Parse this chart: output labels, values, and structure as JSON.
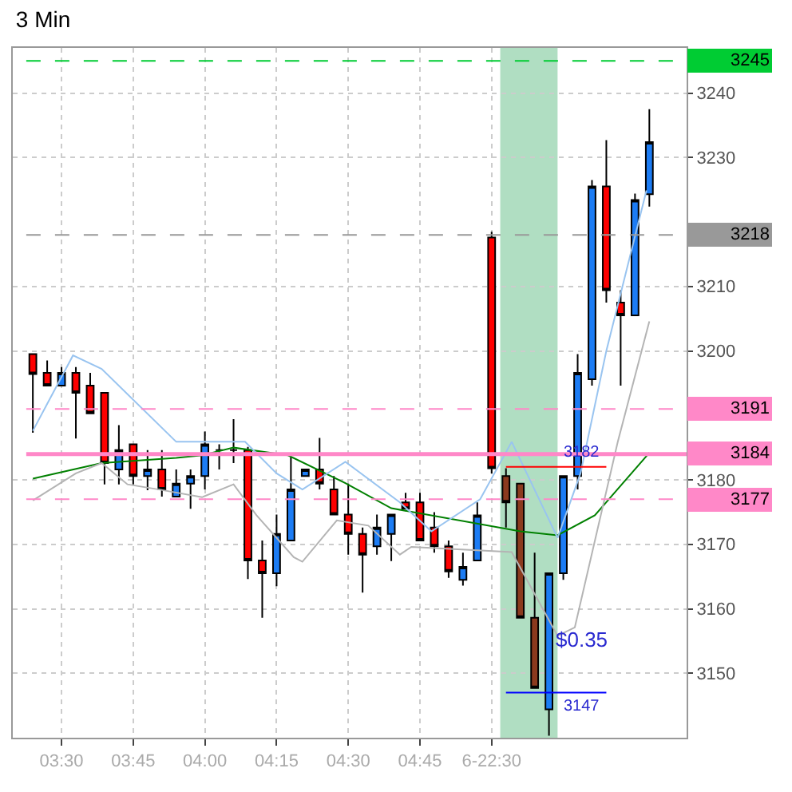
{
  "chart_data": {
    "type": "candlestick",
    "title": "3 Min",
    "x": [
      3.4,
      3.45,
      3.5,
      3.55,
      3.6,
      3.65,
      3.7,
      3.75,
      3.8,
      3.85,
      3.9,
      3.95,
      4.0,
      4.05,
      4.1,
      4.15,
      4.2,
      4.25,
      4.3,
      4.35,
      4.4,
      4.45,
      4.5,
      4.55,
      4.6,
      4.65,
      4.7,
      4.75,
      4.8,
      4.85,
      4.9,
      4.95,
      5.0,
      5.05,
      5.1,
      5.15,
      5.2,
      5.25,
      5.3,
      5.35,
      5.4,
      5.45,
      5.5,
      5.55
    ],
    "ohlc": [
      [
        3199.5,
        3199.5,
        3187.3,
        3196.4
      ],
      [
        3196.6,
        3198.5,
        3194.6,
        3194.6
      ],
      [
        3194.6,
        3197.5,
        3194.6,
        3196.6
      ],
      [
        3196.6,
        3197.5,
        3186.4,
        3193.5
      ],
      [
        3194.6,
        3196.6,
        3190.3,
        3190.3
      ],
      [
        3193.5,
        3193.5,
        3179.3,
        3182.6
      ],
      [
        3181.6,
        3188.5,
        3179.3,
        3184.6
      ],
      [
        3185.5,
        3185.5,
        3179.3,
        3180.6
      ],
      [
        3180.6,
        3184.6,
        3178.4,
        3181.6
      ],
      [
        3181.6,
        3184.6,
        3177.4,
        3178.5
      ],
      [
        3177.4,
        3181.6,
        3177.4,
        3179.4
      ],
      [
        3179.4,
        3181.6,
        3175.5,
        3180.6
      ],
      [
        3180.6,
        3187.5,
        3178.5,
        3185.5
      ],
      [
        3184.6,
        3185.5,
        3181.6,
        3184.6
      ],
      [
        3184.6,
        3189.4,
        3182.6,
        3184.6
      ],
      [
        3184.6,
        3185.1,
        3164.6,
        3167.5
      ],
      [
        3167.5,
        3170.6,
        3158.6,
        3165.5
      ],
      [
        3165.5,
        3174.6,
        3163.5,
        3171.6
      ],
      [
        3170.6,
        3183.6,
        3170.6,
        3178.5
      ],
      [
        3180.6,
        3181.6,
        3180.6,
        3181.6
      ],
      [
        3181.6,
        3186.5,
        3178.5,
        3179.4
      ],
      [
        3178.5,
        3180.6,
        3174.6,
        3174.6
      ],
      [
        3174.6,
        3179.4,
        3168.4,
        3171.6
      ],
      [
        3171.6,
        3172.6,
        3162.5,
        3168.4
      ],
      [
        3169.7,
        3174.6,
        3168.4,
        3172.6
      ],
      [
        3171.6,
        3174.6,
        3167.4,
        3174.6
      ],
      [
        3176.5,
        3178.0,
        3175.5,
        3175.5
      ],
      [
        3176.5,
        3178.0,
        3170.6,
        3170.6
      ],
      [
        3172.6,
        3175.0,
        3168.7,
        3169.7
      ],
      [
        3169.7,
        3170.6,
        3164.8,
        3165.8
      ],
      [
        3164.5,
        3168.7,
        3163.6,
        3166.5
      ],
      [
        3167.5,
        3176.5,
        3167.5,
        3174.5
      ],
      [
        3217.6,
        3218.5,
        3181.0,
        3181.8
      ],
      [
        3180.6,
        3181.8,
        3172.6,
        3176.5
      ],
      [
        3179.4,
        3179.4,
        3158.6,
        3158.6
      ],
      [
        3158.6,
        3168.7,
        3147.7,
        3147.7
      ],
      [
        3144.4,
        3165.5,
        3140.3,
        3165.5
      ],
      [
        3165.5,
        3180.6,
        3164.5,
        3180.6
      ],
      [
        3180.6,
        3199.5,
        3178.5,
        3196.6
      ],
      [
        3195.6,
        3226.5,
        3194.6,
        3225.5
      ],
      [
        3225.5,
        3232.7,
        3207.5,
        3209.4
      ],
      [
        3207.5,
        3209.4,
        3194.6,
        3205.5
      ],
      [
        3205.5,
        3224.4,
        3205.5,
        3223.4
      ],
      [
        3224.3,
        3237.5,
        3222.4,
        3232.4
      ]
    ],
    "colors": [
      "#ff0000",
      "#ff0000",
      "#1c7cf4",
      "#ff0000",
      "#ff0000",
      "#ff0000",
      "#1c7cf4",
      "#ff0000",
      "#1c7cf4",
      "#ff0000",
      "#1c7cf4",
      "#1c7cf4",
      "#1c7cf4",
      "#000000",
      "#000000",
      "#ff0000",
      "#ff0000",
      "#1c7cf4",
      "#1c7cf4",
      "#1c7cf4",
      "#ff0000",
      "#ff0000",
      "#ff0000",
      "#ff0000",
      "#1c7cf4",
      "#1c7cf4",
      "#ff0000",
      "#ff0000",
      "#ff0000",
      "#ff0000",
      "#1c7cf4",
      "#1c7cf4",
      "#ff0000",
      "#8b3a1e",
      "#8b3a1e",
      "#8b3a1e",
      "#1c7cf4",
      "#1c7cf4",
      "#1c7cf4",
      "#1c7cf4",
      "#ff0000",
      "#ff0000",
      "#1c7cf4",
      "#1c7cf4"
    ],
    "series": [
      {
        "type": "line",
        "color": "#008000",
        "x": [
          3.4,
          3.64,
          3.9,
          3.99,
          4.1,
          4.29,
          4.49,
          4.65,
          5.1,
          5.23,
          5.36,
          5.55
        ],
        "values": [
          3180.2,
          3182.6,
          3183.4,
          3183.8,
          3185.0,
          3183.8,
          3179.5,
          3175.6,
          3172.0,
          3171.4,
          3174.5,
          3184.2
        ]
      },
      {
        "type": "line",
        "color": "#99c4f0",
        "x": [
          3.4,
          3.54,
          3.64,
          3.9,
          4.14,
          4.25,
          4.34,
          4.49,
          4.68,
          4.79,
          4.96,
          5.07,
          5.23,
          5.31,
          5.4,
          5.54
        ],
        "values": [
          3187.6,
          3199.3,
          3197.2,
          3185.9,
          3185.9,
          3181.0,
          3178.5,
          3182.8,
          3176.5,
          3172.0,
          3177.0,
          3185.9,
          3171.0,
          3181.0,
          3200.0,
          3224.9
        ]
      },
      {
        "type": "line",
        "color": "#b4b4b4",
        "x": [
          3.4,
          3.55,
          3.64,
          3.73,
          3.84,
          3.99,
          4.1,
          4.18,
          4.31,
          4.34,
          4.46,
          4.57,
          4.68,
          4.72,
          5.07,
          5.23,
          5.29,
          5.44,
          5.55
        ],
        "values": [
          3176.8,
          3181.0,
          3182.6,
          3179.3,
          3178.5,
          3177.3,
          3179.3,
          3174.5,
          3168.0,
          3167.3,
          3173.7,
          3172.9,
          3168.4,
          3169.6,
          3168.8,
          3155.8,
          3157.1,
          3185.9,
          3204.6
        ]
      },
      {
        "type": "line",
        "color": "#ff0000",
        "x": [
          5.05,
          5.4
        ],
        "values": [
          3182,
          3182
        ]
      },
      {
        "type": "line",
        "color": "#0000ff",
        "x": [
          5.05,
          5.4
        ],
        "values": [
          3147,
          3147
        ]
      }
    ],
    "xlim": [
      3.33,
      5.68
    ],
    "ylim": [
      3140,
      3247
    ],
    "xticks": [
      {
        "value": 3.5,
        "label": "03:30"
      },
      {
        "value": 3.75,
        "label": "03:45"
      },
      {
        "value": 4.0,
        "label": "04:00"
      },
      {
        "value": 4.25,
        "label": "04:15"
      },
      {
        "value": 4.5,
        "label": "04:30"
      },
      {
        "value": 4.75,
        "label": "04:45"
      },
      {
        "value": 5.0,
        "label": "6-22:30"
      }
    ],
    "yticks": [
      3150,
      3160,
      3170,
      3180,
      3200,
      3210,
      3230,
      3240
    ],
    "grid": true,
    "ref_lines": [
      {
        "axis": "y",
        "value": 3245,
        "label": "3245",
        "color": "#00cc33",
        "line_style": "dashed"
      },
      {
        "axis": "y",
        "value": 3218,
        "label": "3218",
        "color": "#999999",
        "line_style": "dashed"
      },
      {
        "axis": "y",
        "value": 3191,
        "label": "3191",
        "color": "#ff88c8",
        "line_style": "dashed"
      },
      {
        "axis": "y",
        "value": 3184,
        "label": "3184",
        "color": "#ff88c8",
        "line_style": "solid"
      },
      {
        "axis": "y",
        "value": 3177,
        "label": "3177",
        "color": "#ff88c8",
        "line_style": "dashed"
      }
    ],
    "bands": [
      {
        "axis": "x",
        "from": 5.03,
        "to": 5.23,
        "color": "#8fd0a8"
      }
    ],
    "annotations": [
      {
        "text": "3182",
        "x": 5.24,
        "y": 3182
      },
      {
        "text": "3147",
        "x": 5.24,
        "y": 3147
      },
      "$0.35"
    ]
  }
}
